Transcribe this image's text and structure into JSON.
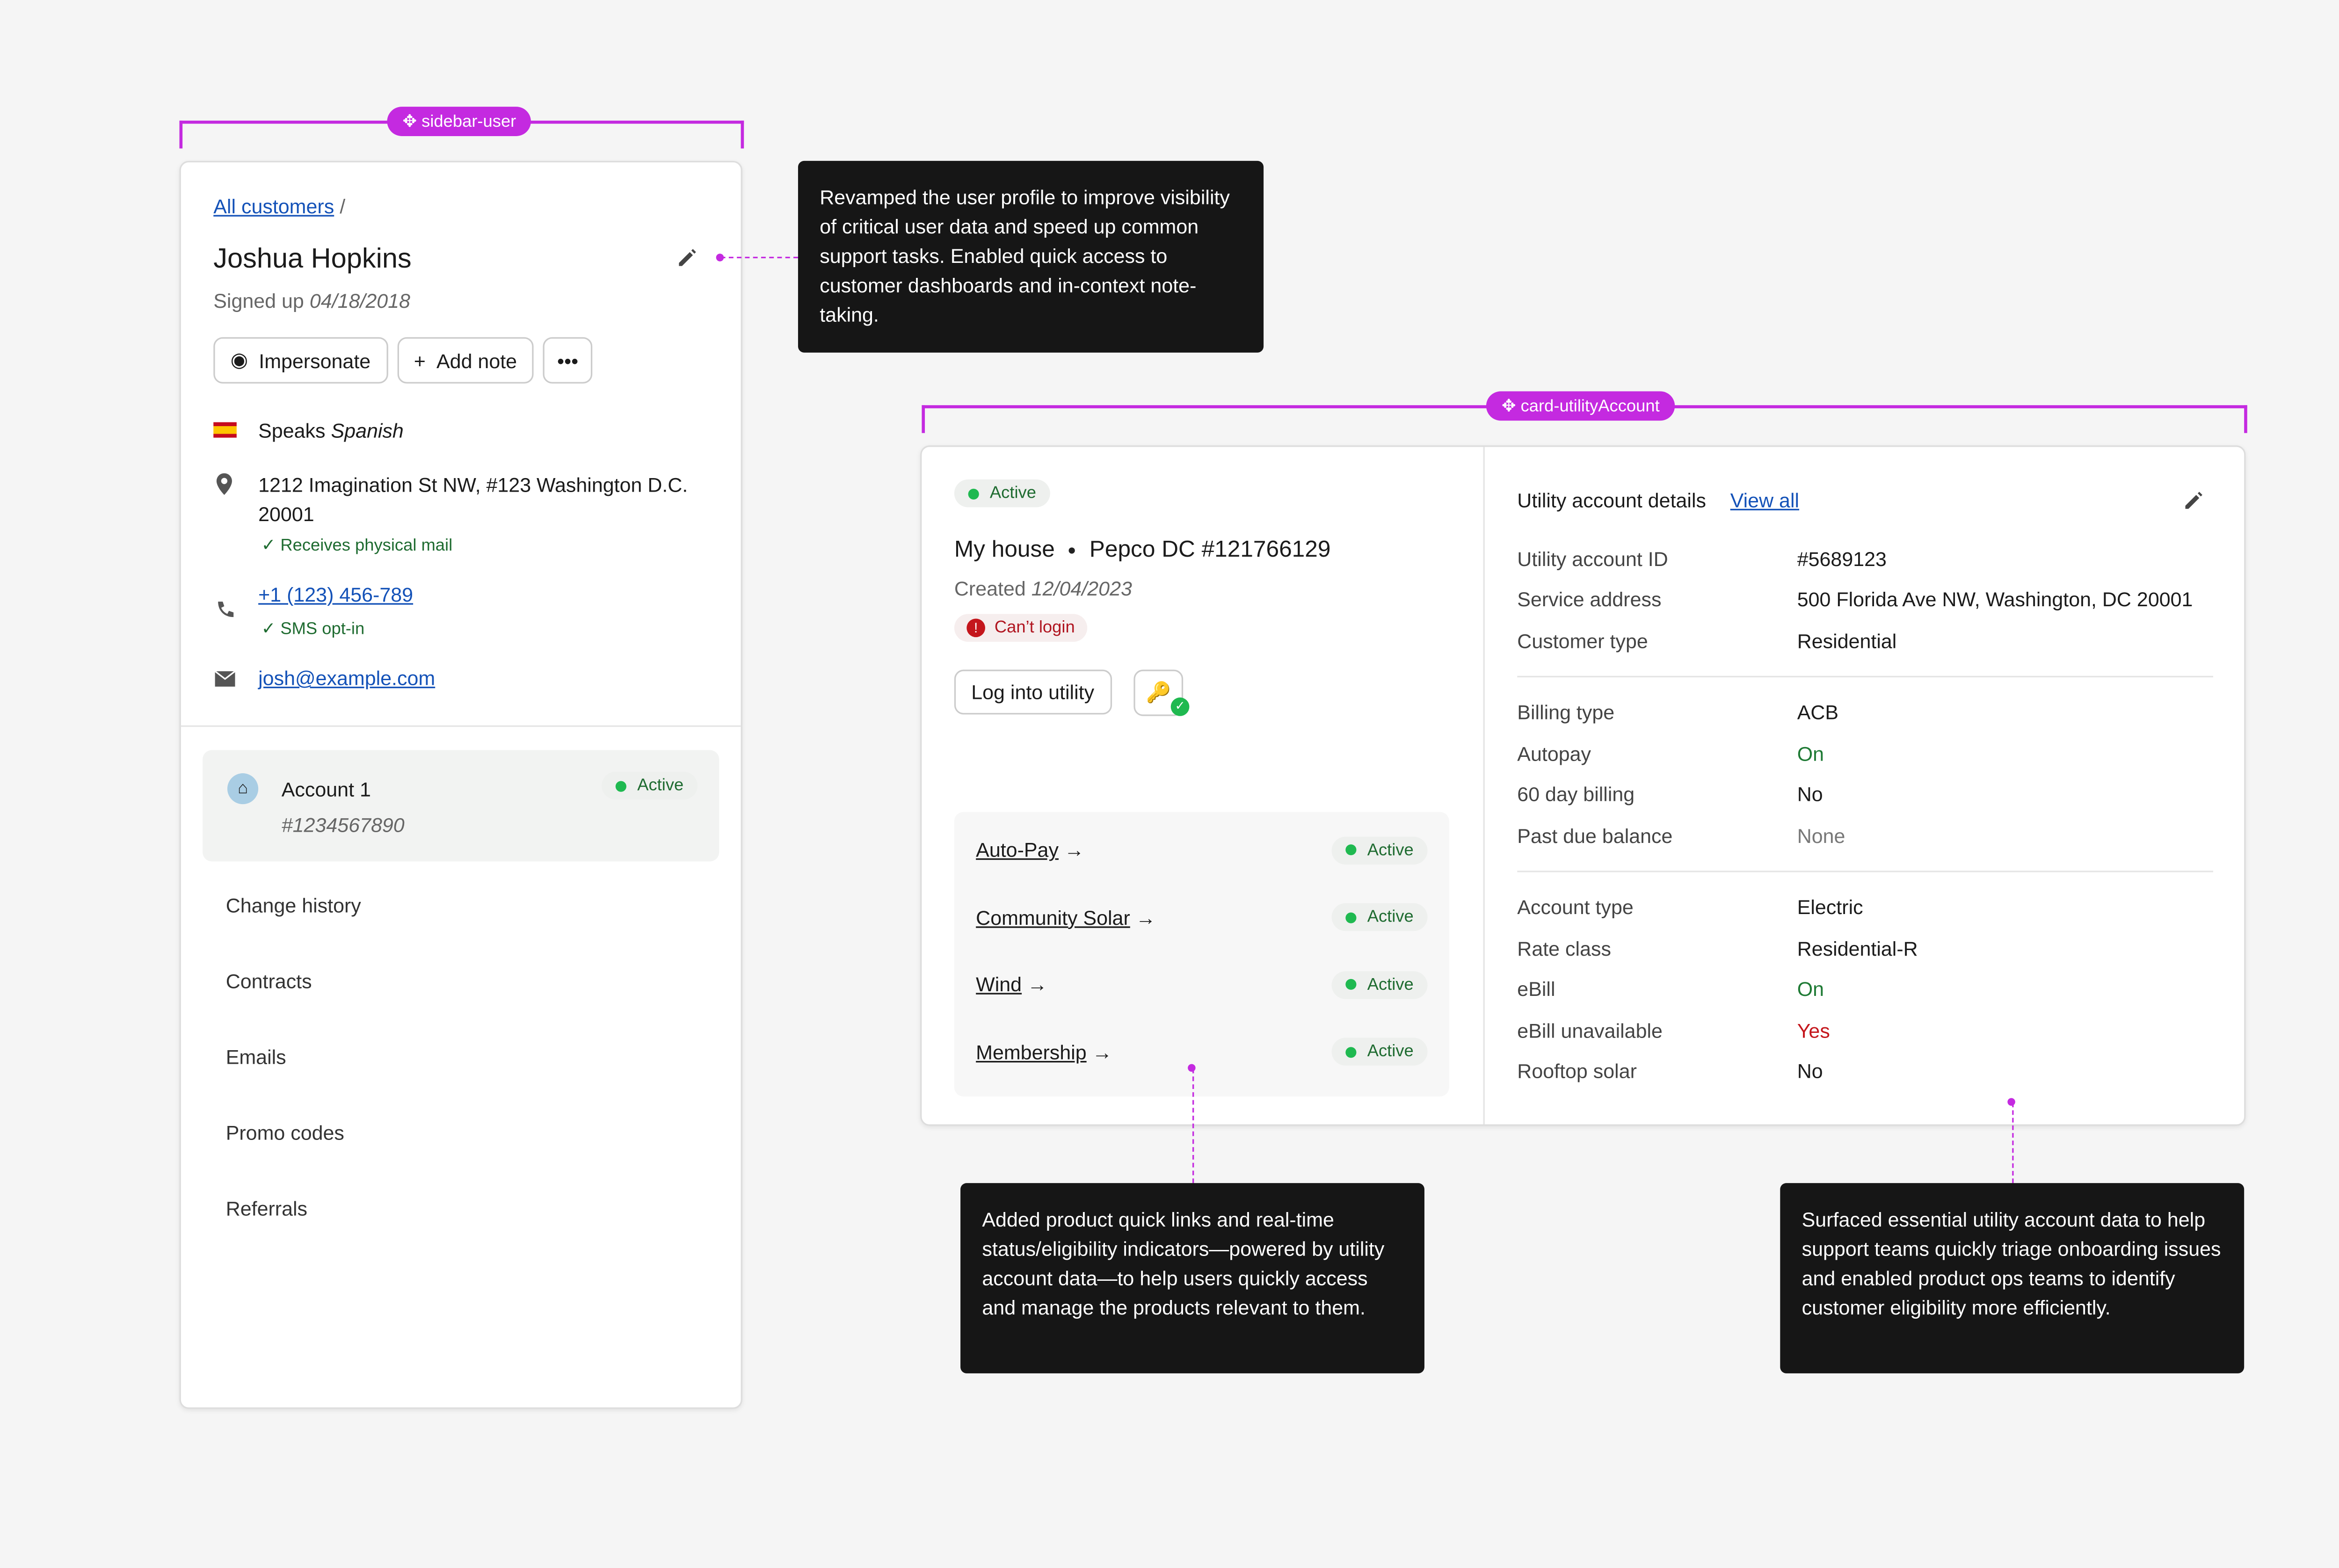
{
  "sidebar": {
    "tag": "sidebar-user",
    "breadcrumb": "All customers",
    "separator": "/",
    "name": "Joshua Hopkins",
    "signed_up_label": "Signed up",
    "signed_up_date": "04/18/2018",
    "buttons": [
      "Impersonate",
      "Add note"
    ],
    "speaks_label": "Speaks",
    "language": "Spanish",
    "address": "1212 Imagination St NW, #123 Washington D.C. 20001",
    "mail_note": "Receives physical mail",
    "phone": "+1 (123) 456-789",
    "sms_note": "SMS opt-in",
    "email": "josh@example.com",
    "account": {
      "name": "Account 1",
      "number": "#1234567890",
      "status": "Active"
    },
    "nav": [
      "Change history",
      "Contracts",
      "Emails",
      "Promo codes",
      "Referrals"
    ]
  },
  "card": {
    "tag": "card-utilityAccount",
    "status": "Active",
    "name": "My house",
    "provider": "Pepco DC #121766129",
    "created_label": "Created",
    "created_date": "12/04/2023",
    "error": "Can’t login",
    "login_button": "Log into utility",
    "products": [
      {
        "name": "Auto-Pay",
        "status": "Active"
      },
      {
        "name": "Community Solar",
        "status": "Active"
      },
      {
        "name": "Wind",
        "status": "Active"
      },
      {
        "name": "Membership",
        "status": "Active"
      }
    ],
    "details_title": "Utility account details",
    "view_all": "View all",
    "groups": [
      [
        {
          "label": "Utility account ID",
          "value": "#5689123"
        },
        {
          "label": "Service address",
          "value": "500 Florida Ave NW, Washington, DC 20001"
        },
        {
          "label": "Customer type",
          "value": "Residential"
        }
      ],
      [
        {
          "label": "Billing type",
          "value": "ACB"
        },
        {
          "label": "Autopay",
          "value": "On",
          "color": "#1e7a34"
        },
        {
          "label": "60 day billing",
          "value": "No"
        },
        {
          "label": "Past due balance",
          "value": "None",
          "color": "#777777"
        }
      ],
      [
        {
          "label": "Account type",
          "value": "Electric"
        },
        {
          "label": "Rate class",
          "value": "Residential-R"
        },
        {
          "label": "eBill",
          "value": "On",
          "color": "#1e7a34"
        },
        {
          "label": "eBill unavailable",
          "value": "Yes",
          "color": "#c4161c"
        },
        {
          "label": "Rooftop solar",
          "value": "No"
        }
      ]
    ]
  },
  "annotations": [
    "Revamped the user profile to improve visibility of critical user data and speed up common support tasks. Enabled quick access to customer dashboards and in-context note-taking.",
    "Added product quick links and real-time status/eligibility indicators—powered by utility account data—to help users quickly access and manage the products relevant to them.",
    "Surfaced essential utility account data to help support teams quickly triage onboarding issues and enabled product ops teams to identify customer eligibility more efficiently."
  ]
}
